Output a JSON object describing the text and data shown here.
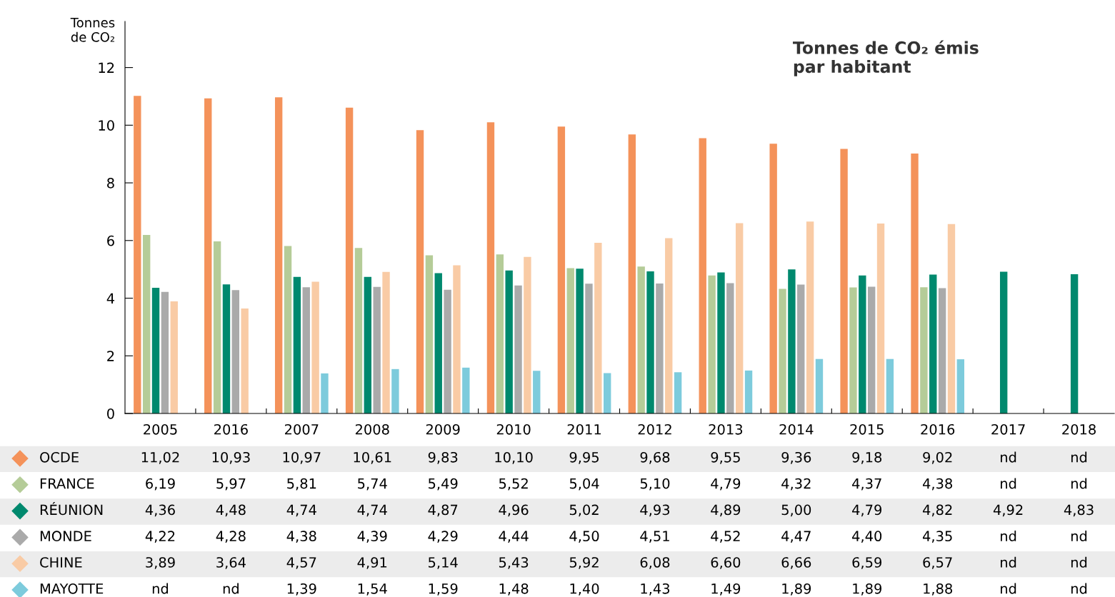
{
  "chart_data": {
    "type": "bar",
    "title": "Tonnes de CO₂ émis\npar habitant",
    "ylabel": "Tonnes\nde CO₂",
    "categories": [
      "2005",
      "2016",
      "2007",
      "2008",
      "2009",
      "2010",
      "2011",
      "2012",
      "2013",
      "2014",
      "2015",
      "2016",
      "2017",
      "2018"
    ],
    "series": [
      {
        "name": "OCDE",
        "color": "#f4925a",
        "values": [
          11.02,
          10.93,
          10.97,
          10.61,
          9.83,
          10.1,
          9.95,
          9.68,
          9.55,
          9.36,
          9.18,
          9.02,
          null,
          null
        ],
        "value_labels": [
          "11,02",
          "10,93",
          "10,97",
          "10,61",
          "9,83",
          "10,10",
          "9,95",
          "9,68",
          "9,55",
          "9,36",
          "9,18",
          "9,02",
          "nd",
          "nd"
        ]
      },
      {
        "name": "FRANCE",
        "color": "#b5cc98",
        "values": [
          6.19,
          5.97,
          5.81,
          5.74,
          5.49,
          5.52,
          5.04,
          5.1,
          4.79,
          4.32,
          4.37,
          4.38,
          null,
          null
        ],
        "value_labels": [
          "6,19",
          "5,97",
          "5,81",
          "5,74",
          "5,49",
          "5,52",
          "5,04",
          "5,10",
          "4,79",
          "4,32",
          "4,37",
          "4,38",
          "nd",
          "nd"
        ]
      },
      {
        "name": "RÉUNION",
        "color": "#00896e",
        "values": [
          4.36,
          4.48,
          4.74,
          4.74,
          4.87,
          4.96,
          5.02,
          4.93,
          4.89,
          5.0,
          4.79,
          4.82,
          4.92,
          4.83
        ],
        "value_labels": [
          "4,36",
          "4,48",
          "4,74",
          "4,74",
          "4,87",
          "4,96",
          "5,02",
          "4,93",
          "4,89",
          "5,00",
          "4,79",
          "4,82",
          "4,92",
          "4,83"
        ]
      },
      {
        "name": "MONDE",
        "color": "#aaaaaa",
        "values": [
          4.22,
          4.28,
          4.38,
          4.39,
          4.29,
          4.44,
          4.5,
          4.51,
          4.52,
          4.47,
          4.4,
          4.35,
          null,
          null
        ],
        "value_labels": [
          "4,22",
          "4,28",
          "4,38",
          "4,39",
          "4,29",
          "4,44",
          "4,50",
          "4,51",
          "4,52",
          "4,47",
          "4,40",
          "4,35",
          "nd",
          "nd"
        ]
      },
      {
        "name": "CHINE",
        "color": "#f9cba5",
        "values": [
          3.89,
          3.64,
          4.57,
          4.91,
          5.14,
          5.43,
          5.92,
          6.08,
          6.6,
          6.66,
          6.59,
          6.57,
          null,
          null
        ],
        "value_labels": [
          "3,89",
          "3,64",
          "4,57",
          "4,91",
          "5,14",
          "5,43",
          "5,92",
          "6,08",
          "6,60",
          "6,66",
          "6,59",
          "6,57",
          "nd",
          "nd"
        ]
      },
      {
        "name": "MAYOTTE",
        "color": "#7dcbdc",
        "values": [
          null,
          null,
          1.39,
          1.54,
          1.59,
          1.48,
          1.4,
          1.43,
          1.49,
          1.89,
          1.89,
          1.88,
          null,
          null
        ],
        "value_labels": [
          "nd",
          "nd",
          "1,39",
          "1,54",
          "1,59",
          "1,48",
          "1,40",
          "1,43",
          "1,49",
          "1,89",
          "1,89",
          "1,88",
          "nd",
          "nd"
        ]
      }
    ],
    "ylim": [
      0,
      13.6
    ],
    "yticks": [
      0,
      2,
      4,
      6,
      8,
      10,
      12
    ],
    "grid": false,
    "legend": "bottom left",
    "marker": "diamond"
  }
}
